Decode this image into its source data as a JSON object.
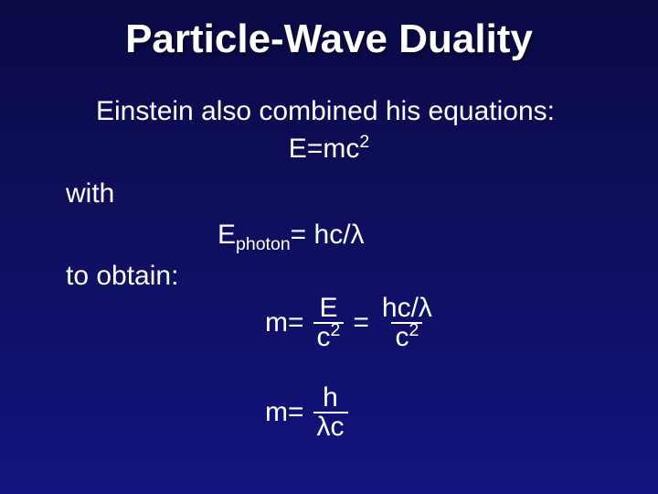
{
  "slide": {
    "background_gradient": [
      "#0a0a45",
      "#141480"
    ],
    "text_color": "#ffffff",
    "title": "Particle-Wave Duality",
    "title_fontsize": 44,
    "body_fontsize": 30,
    "intro_line": "Einstein also combined his equations:",
    "eq_emc2_lhs": "E=mc",
    "eq_emc2_sup": "2",
    "label_with": "with",
    "eq_photon_lhs": "E",
    "eq_photon_sub": "photon",
    "eq_photon_rhs": "= hc/λ",
    "label_obtain": "to obtain:",
    "eq3_m_equals": "m=",
    "eq3_frac1_num": "E",
    "eq3_frac1_den_base": "c",
    "eq3_frac1_den_sup": "2",
    "eq3_equals": "=",
    "eq3_frac2_num": "hc/λ",
    "eq3_frac2_den_base": "c",
    "eq3_frac2_den_sup": "2",
    "eq4_m_equals": "m=",
    "eq4_frac_num": "h",
    "eq4_frac_den": "λc"
  }
}
